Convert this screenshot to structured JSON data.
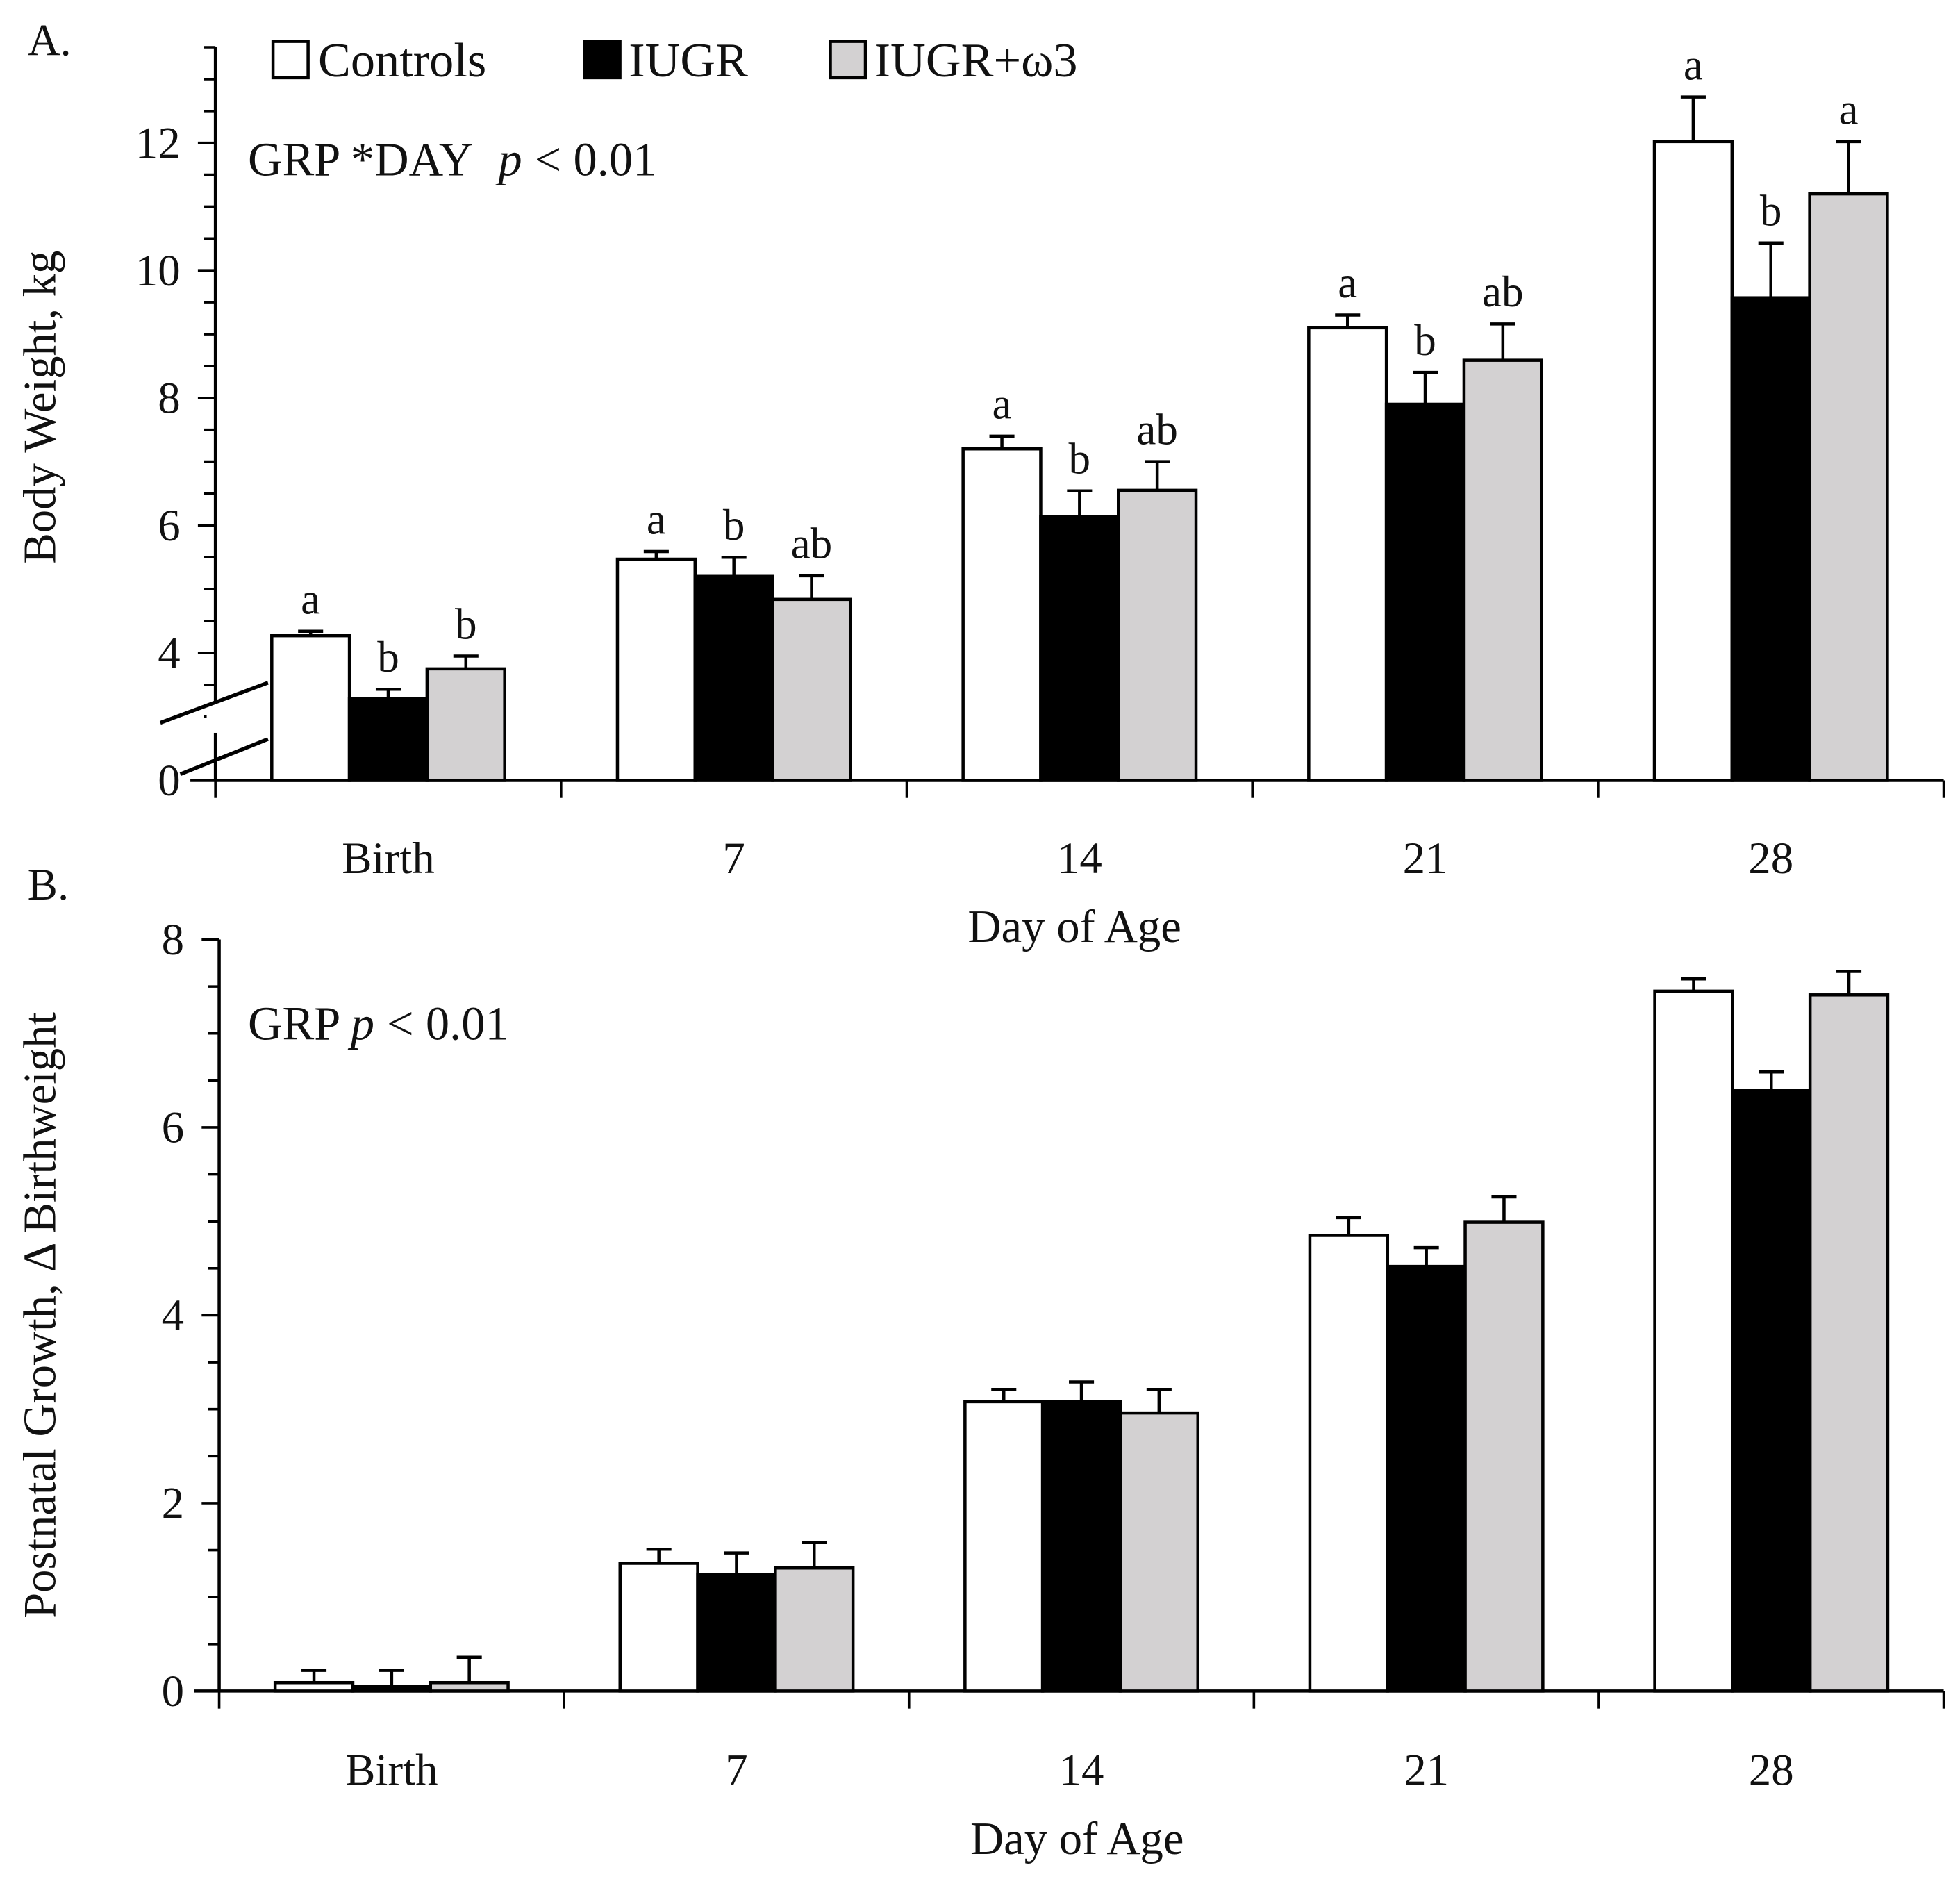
{
  "colors": {
    "Controls": "#ffffff",
    "IUGR": "#000000",
    "IUGR+ω3": "#d3d1d2",
    "stroke": "#000000"
  },
  "chart_data": [
    {
      "type": "bar",
      "panel_label": "A.",
      "title": "",
      "xlabel": "Day of Age",
      "ylabel": "Body Weight, kg",
      "categories": [
        "Birth",
        "7",
        "14",
        "21",
        "28"
      ],
      "yticks": [
        "0",
        "4",
        "6",
        "8",
        "10",
        "12"
      ],
      "ylim": [
        0,
        13.5
      ],
      "axis_break": "between 0 and 4",
      "annotation": {
        "prefix": "GRP *DAY",
        "italic": "p",
        "suffix": "< 0.01"
      },
      "legend": {
        "placement": "top",
        "entries": [
          "Controls",
          "IUGR",
          "IUGR+ω3"
        ]
      },
      "series": [
        {
          "name": "Controls",
          "values": [
            4.27,
            5.47,
            7.2,
            9.1,
            12.02
          ],
          "errors": [
            0.07,
            0.12,
            0.2,
            0.2,
            0.7
          ],
          "letters": [
            "a",
            "a",
            "a",
            "a",
            "a"
          ]
        },
        {
          "name": "IUGR",
          "values": [
            3.28,
            5.2,
            6.14,
            7.9,
            9.57
          ],
          "errors": [
            0.15,
            0.3,
            0.4,
            0.5,
            0.86
          ],
          "letters": [
            "b",
            "b",
            "b",
            "b",
            "b"
          ]
        },
        {
          "name": "IUGR+ω3",
          "values": [
            3.75,
            4.84,
            6.55,
            8.59,
            11.2
          ],
          "errors": [
            0.2,
            0.37,
            0.45,
            0.57,
            0.82
          ],
          "letters": [
            "b",
            "ab",
            "ab",
            "ab",
            "a"
          ]
        }
      ]
    },
    {
      "type": "bar",
      "panel_label": "B.",
      "title": "",
      "xlabel": "Day of Age",
      "ylabel": "Postnatal Growth, Δ Birthweight",
      "categories": [
        "Birth",
        "7",
        "14",
        "21",
        "28"
      ],
      "yticks": [
        "0",
        "2",
        "4",
        "6",
        "8"
      ],
      "ylim": [
        0,
        8
      ],
      "annotation": {
        "prefix": "GRP",
        "italic": "p",
        "suffix": "< 0.01"
      },
      "series": [
        {
          "name": "Controls",
          "values": [
            0.09,
            1.36,
            3.08,
            4.85,
            7.45
          ],
          "errors": [
            0.13,
            0.15,
            0.13,
            0.19,
            0.13
          ]
        },
        {
          "name": "IUGR",
          "values": [
            0.05,
            1.24,
            3.08,
            4.52,
            6.39
          ],
          "errors": [
            0.17,
            0.23,
            0.21,
            0.2,
            0.2
          ]
        },
        {
          "name": "IUGR+ω3",
          "values": [
            0.09,
            1.31,
            2.96,
            4.99,
            7.41
          ],
          "errors": [
            0.27,
            0.27,
            0.25,
            0.27,
            0.25
          ]
        }
      ]
    }
  ]
}
